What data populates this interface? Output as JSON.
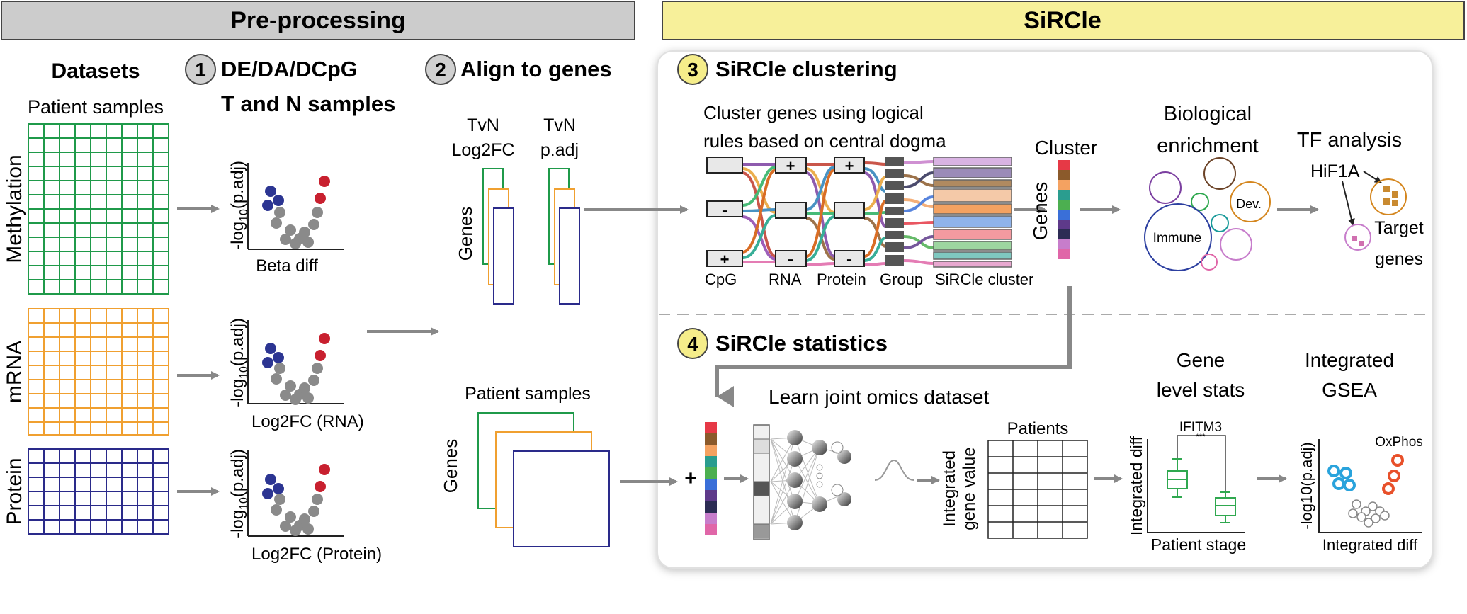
{
  "headers": {
    "preprocessing": "Pre-processing",
    "sircle": "SiRCle"
  },
  "datasets": {
    "title": "Datasets",
    "patient_samples": "Patient samples",
    "methylation": "Methylation",
    "mrna": "mRNA",
    "protein": "Protein"
  },
  "step1": {
    "num": "1",
    "title": "DE/DA/DCpG",
    "subtitle": "T and N samples",
    "ylabel": "-log",
    "ylabel_sub": "10",
    "ylabel_tail": "(p.adj)",
    "x1": "Beta diff",
    "x2": "Log2FC (RNA)",
    "x3": "Log2FC (Protein)"
  },
  "step2": {
    "num": "2",
    "title": "Align to genes",
    "tvn": "TvN",
    "log2fc": "Log2FC",
    "padj": "p.adj",
    "genes": "Genes",
    "patient_samples": "Patient samples",
    "genes2": "Genes"
  },
  "step3": {
    "num": "3",
    "title": "SiRCle clustering",
    "desc1": "Cluster genes using logical",
    "desc2": "rules based on central dogma",
    "cpg": "CpG",
    "rna": "RNA",
    "protein": "Protein",
    "group": "Group",
    "sircle_cluster": "SiRCle cluster",
    "plus": "+",
    "minus": "-",
    "cluster": "Cluster",
    "genes": "Genes",
    "bio1": "Biological",
    "bio2": "enrichment",
    "immune": "Immune",
    "dev": "Dev.",
    "tf": "TF analysis",
    "hif": "HiF1A",
    "target1": "Target",
    "target2": "genes"
  },
  "step4": {
    "num": "4",
    "title": "SiRCle statistics",
    "learn": "Learn joint omics dataset",
    "plus": "+",
    "patients": "Patients",
    "integrated": "Integrated",
    "gene_value": "gene value",
    "gene1": "Gene",
    "gene2": "level stats",
    "ifitm3": "IFITM3",
    "stars": "***",
    "integrated_diff": "Integrated diff",
    "patient_stage": "Patient stage",
    "igsea1": "Integrated",
    "igsea2": "GSEA",
    "oxphos": "OxPhos",
    "log10padj": "-log10(p.adj)",
    "integrated_diff2": "Integrated diff"
  },
  "colors": {
    "header_gray": "#cccccc",
    "header_yellow": "#f7f09a",
    "num_gray": "#d0d0d0",
    "num_yellow": "#f5ed8a",
    "methylation": "#1f9a4a",
    "mrna": "#f0a030",
    "protein": "#2a2a8a",
    "volcano_blue": "#2c3592",
    "volcano_red": "#c8202f",
    "volcano_gray": "#8a8a8a",
    "arrow": "#888888",
    "oxphos": "#e8502a",
    "gsea_blue": "#29a3dc",
    "box_green": "#2fa84f"
  },
  "cluster_colors": [
    "#e63946",
    "#8b5a2b",
    "#f4a261",
    "#2a9d8f",
    "#4caf50",
    "#3a6fd8",
    "#5e3a8a",
    "#2c2c54",
    "#c77dcb",
    "#e066a8"
  ]
}
